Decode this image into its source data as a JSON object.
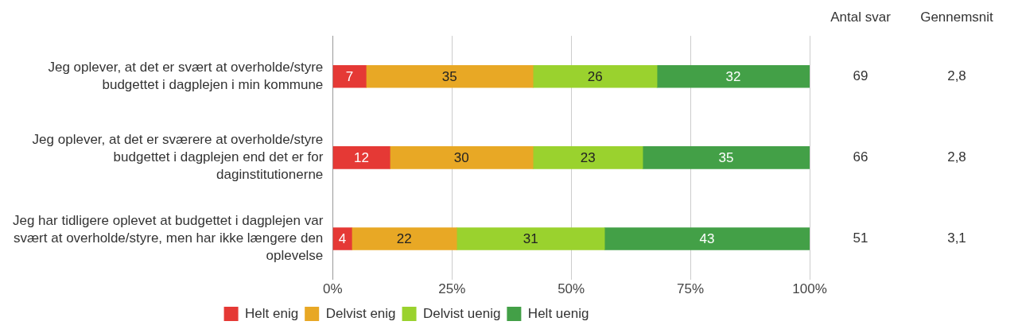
{
  "chart_data": {
    "type": "bar",
    "orientation": "horizontal",
    "stacked": true,
    "categories": [
      "Jeg oplever, at det er svært at overholde/styre budgettet i dagplejen i min kommune",
      "Jeg oplever, at det er sværere at overholde/styre budgettet i dagplejen end det er for daginstitutionerne",
      "Jeg har tidligere oplevet at budgettet i dagplejen var svært at overholde/styre, men har ikke længere den oplevelse"
    ],
    "series": [
      {
        "name": "Helt enig",
        "color": "#e53935",
        "values": [
          7,
          12,
          4
        ]
      },
      {
        "name": "Delvist enig",
        "color": "#e8a825",
        "values": [
          35,
          30,
          22
        ]
      },
      {
        "name": "Delvist uenig",
        "color": "#9ad22e",
        "values": [
          26,
          23,
          31
        ]
      },
      {
        "name": "Helt uenig",
        "color": "#43a047",
        "values": [
          32,
          35,
          43
        ]
      }
    ],
    "xlim": [
      0,
      100
    ],
    "xticks": [
      {
        "value": 0,
        "label": "0%"
      },
      {
        "value": 25,
        "label": "25%"
      },
      {
        "value": 50,
        "label": "50%"
      },
      {
        "value": 75,
        "label": "75%"
      },
      {
        "value": 100,
        "label": "100%"
      }
    ],
    "grid": "x",
    "legend": "bottom",
    "data_labels": true,
    "annotations": [
      "Antal svar",
      "Gennemsnit",
      "69",
      "2,8",
      "66",
      "2,8",
      "51",
      "3,1"
    ]
  }
}
